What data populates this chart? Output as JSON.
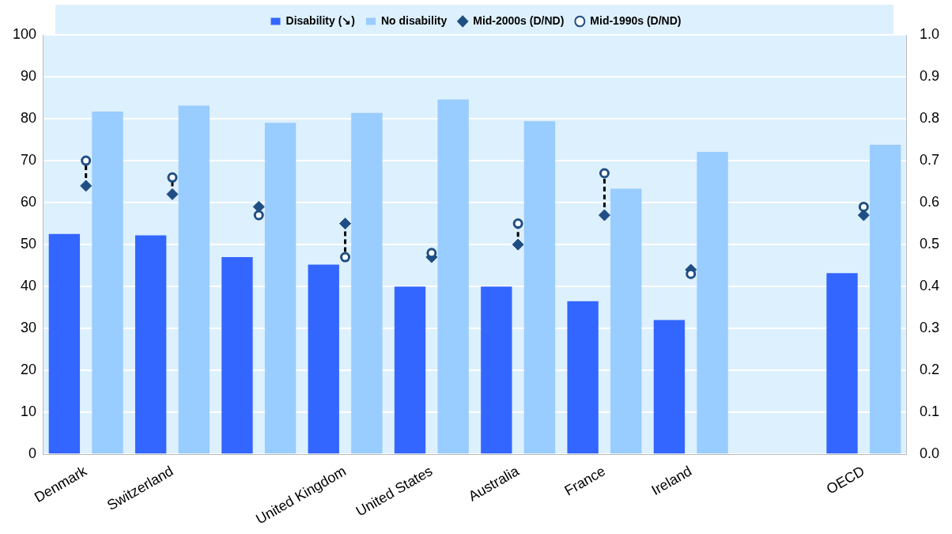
{
  "chart_data": {
    "type": "bar",
    "categories": [
      "Denmark",
      "Switzerland",
      null,
      "United Kingdom",
      "United States",
      "Australia",
      "France",
      "Ireland",
      null,
      "OECD"
    ],
    "series": [
      {
        "name": "Disability (↘)",
        "color": "#3366ff",
        "values": [
          52.5,
          52.2,
          47,
          45.2,
          40,
          40,
          36.5,
          32,
          null,
          43.2
        ]
      },
      {
        "name": "No disability",
        "color": "#99ccff",
        "values": [
          81.7,
          83.1,
          79,
          81.4,
          84.6,
          79.4,
          63.3,
          72.1,
          null,
          73.8
        ]
      },
      {
        "name": "Mid-2000s (D/ND)",
        "type": "scatter",
        "axis": "y2",
        "marker": "diamond",
        "color": "#1f4e84",
        "values": [
          0.64,
          0.62,
          0.59,
          0.55,
          0.47,
          0.5,
          0.57,
          0.44,
          null,
          0.57
        ]
      },
      {
        "name": "Mid-1990s (D/ND)",
        "type": "scatter",
        "axis": "y2",
        "marker": "circle",
        "color": "#1f4e84",
        "values": [
          0.7,
          0.66,
          0.57,
          0.47,
          0.48,
          0.55,
          0.67,
          0.43,
          null,
          0.59
        ]
      }
    ],
    "ylim": [
      0,
      100
    ],
    "yticks": [
      0,
      10,
      20,
      30,
      40,
      50,
      60,
      70,
      80,
      90,
      100
    ],
    "y2lim": [
      0,
      1
    ],
    "y2ticks": [
      {
        "value": 0,
        "label": "0.0"
      },
      0.1,
      0.2,
      0.3,
      0.4,
      0.5,
      0.6,
      0.7,
      0.8,
      0.9,
      {
        "value": 1,
        "label": "1.0"
      }
    ],
    "grid": "y",
    "legend": "top"
  }
}
